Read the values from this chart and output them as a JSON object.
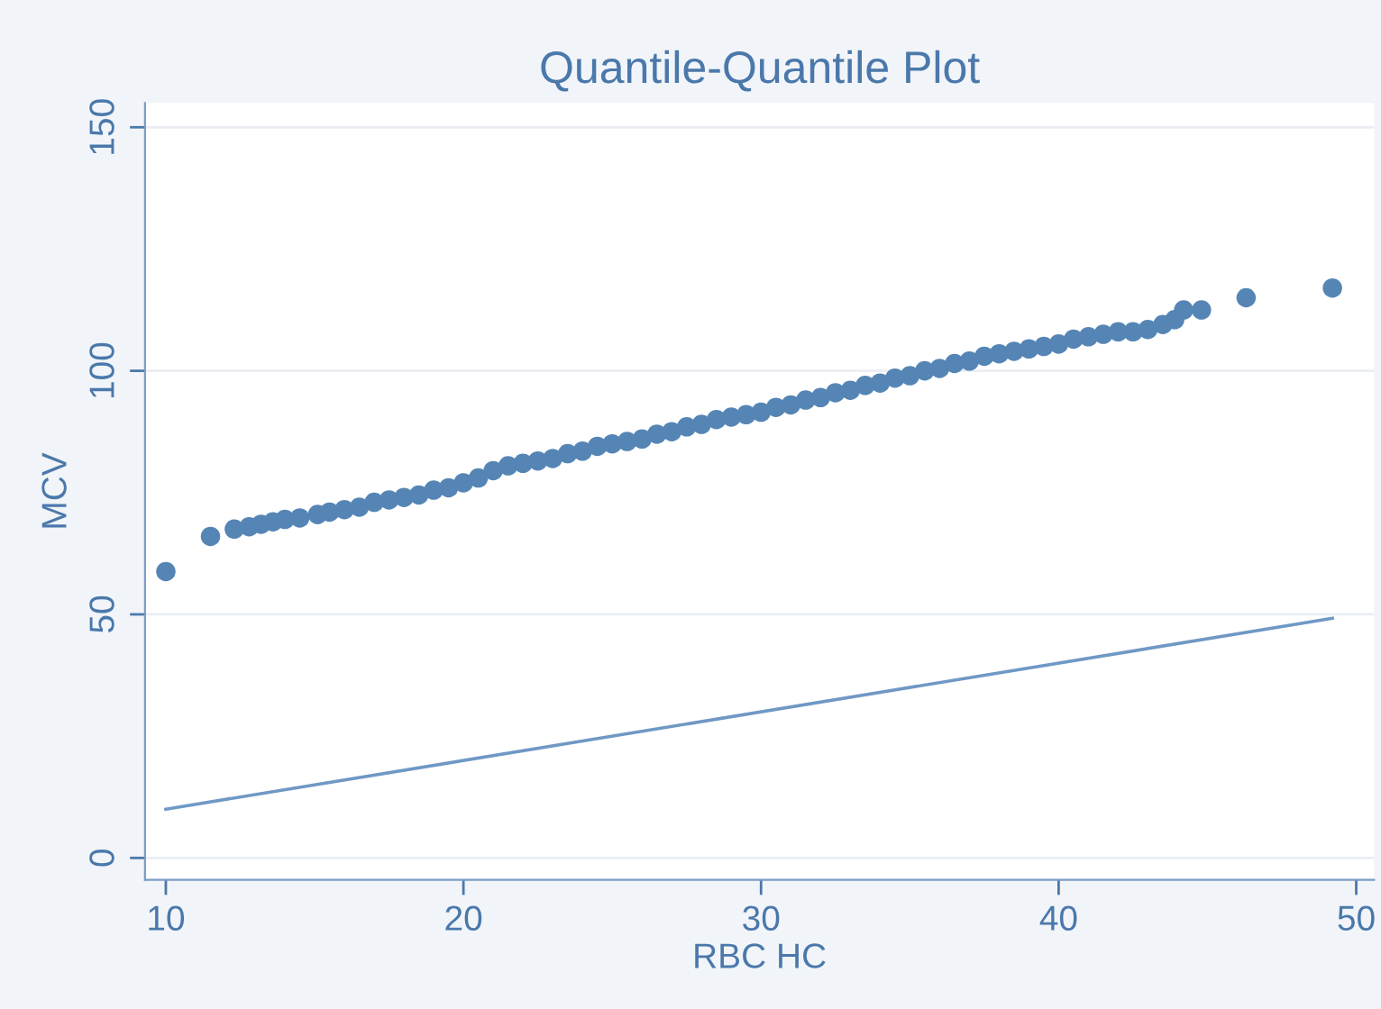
{
  "chart_data": {
    "type": "scatter",
    "title": "Quantile-Quantile Plot",
    "xlabel": "RBC HC",
    "ylabel": "MCV",
    "xlim": [
      9.3,
      50.6
    ],
    "ylim": [
      -4.5,
      155
    ],
    "xticks": [
      10,
      20,
      30,
      40,
      50
    ],
    "yticks": [
      0,
      50,
      100,
      150
    ],
    "grid": "y",
    "marker": "circle",
    "series": [
      {
        "color": "#5585b5",
        "x": [
          10,
          11.5,
          12.3,
          12.8,
          13.2,
          13.6,
          14,
          14.5,
          15.1,
          15.5,
          16,
          16.5,
          17,
          17.5,
          18,
          18.5,
          19,
          19.5,
          20,
          20.5,
          21,
          21.5,
          22,
          22.5,
          23,
          23.5,
          24,
          24.5,
          25,
          25.5,
          26,
          26.5,
          27,
          27.5,
          28,
          28.5,
          29,
          29.5,
          30,
          30.5,
          31,
          31.5,
          32,
          32.5,
          33,
          33.5,
          34,
          34.5,
          35,
          35.5,
          36,
          36.5,
          37,
          37.5,
          38,
          38.5,
          39,
          39.5,
          40,
          40.5,
          41,
          41.5,
          42,
          42.5,
          43,
          43.5,
          43.9,
          44.2,
          44.8,
          46.3,
          49.2
        ],
        "values": [
          58.8,
          66,
          67.5,
          68,
          68.5,
          69,
          69.5,
          69.8,
          70.5,
          71,
          71.5,
          72,
          73,
          73.5,
          74,
          74.5,
          75.5,
          76,
          77,
          78,
          79.5,
          80.5,
          81,
          81.5,
          82,
          83,
          83.5,
          84.5,
          85,
          85.5,
          86,
          87,
          87.5,
          88.5,
          89,
          90,
          90.5,
          91,
          91.5,
          92.5,
          93,
          94,
          94.5,
          95.5,
          96,
          97,
          97.5,
          98.5,
          99,
          100,
          100.5,
          101.5,
          102,
          103,
          103.5,
          104,
          104.5,
          105,
          105.5,
          106.5,
          107,
          107.5,
          108,
          108,
          108.5,
          109.5,
          110.5,
          112.5,
          112.5,
          115,
          117
        ]
      },
      {
        "type": "line",
        "color": "#6f98c4",
        "x": [
          10,
          49.2
        ],
        "values": [
          10,
          49.2
        ],
        "marker": "none"
      }
    ]
  }
}
